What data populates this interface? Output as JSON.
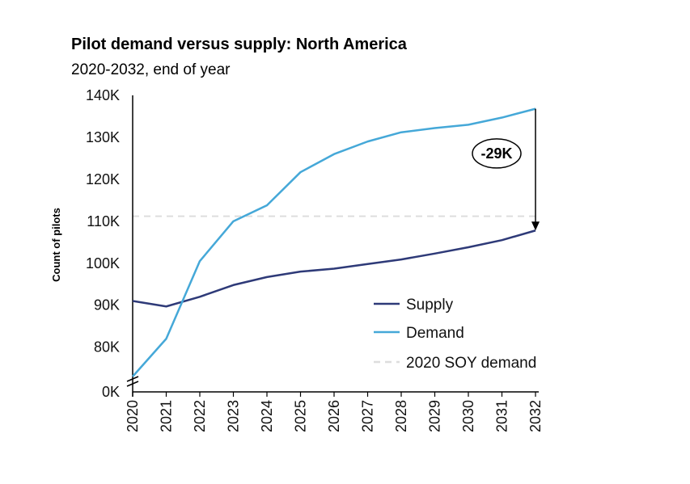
{
  "chart_data": {
    "type": "line",
    "title": "Pilot demand versus supply: North America",
    "subtitle": "2020-2032, end of year",
    "ylabel": "Count of pilots",
    "xlabel": "",
    "x": [
      "2020",
      "2021",
      "2022",
      "2023",
      "2024",
      "2025",
      "2026",
      "2027",
      "2028",
      "2029",
      "2030",
      "2031",
      "2032"
    ],
    "y_ticks": [
      "0K",
      "80K",
      "90K",
      "100K",
      "110K",
      "120K",
      "130K",
      "140K"
    ],
    "ylim": [
      73000,
      140000
    ],
    "axis_break": true,
    "series": [
      {
        "name": "Supply",
        "color": "#2e3a78",
        "values": [
          91000,
          89700,
          92000,
          94800,
          96700,
          98000,
          98700,
          99800,
          100900,
          102300,
          103800,
          105500,
          107800
        ]
      },
      {
        "name": "Demand",
        "color": "#45a8d8",
        "values": [
          73000,
          82000,
          100500,
          110000,
          113800,
          121700,
          126000,
          129000,
          131200,
          132200,
          133000,
          134700,
          136800
        ]
      }
    ],
    "reference_line": {
      "name": "2020 SOY demand",
      "value": 111200,
      "color": "#dddddd",
      "style": "dashed"
    },
    "annotation": {
      "text": "-29K",
      "from_value": 136800,
      "to_value": 107800,
      "x": "2032"
    },
    "legend_position": "bottom-right",
    "grid": false
  }
}
